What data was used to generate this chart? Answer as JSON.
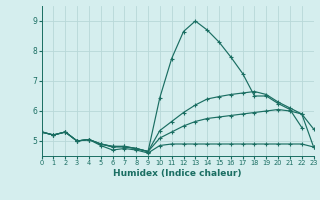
{
  "background_color": "#d5eeee",
  "grid_color": "#b8d8d8",
  "line_color": "#1a6e62",
  "x_label": "Humidex (Indice chaleur)",
  "xlim": [
    0,
    23
  ],
  "ylim": [
    4.5,
    9.5
  ],
  "yticks": [
    5,
    6,
    7,
    8,
    9
  ],
  "xticks": [
    0,
    1,
    2,
    3,
    4,
    5,
    6,
    7,
    8,
    9,
    10,
    11,
    12,
    13,
    14,
    15,
    16,
    17,
    18,
    19,
    20,
    21,
    22,
    23
  ],
  "series": [
    {
      "x": [
        0,
        1,
        2,
        3,
        4,
        5,
        6,
        7,
        8,
        9,
        10,
        11,
        12,
        13,
        14,
        15,
        16,
        17,
        18,
        19,
        20,
        21,
        22,
        23
      ],
      "y": [
        5.3,
        5.2,
        5.3,
        5.0,
        5.05,
        4.85,
        4.7,
        4.75,
        4.7,
        4.6,
        4.85,
        4.9,
        4.9,
        4.9,
        4.9,
        4.9,
        4.9,
        4.9,
        4.9,
        4.9,
        4.9,
        4.9,
        4.9,
        4.8
      ]
    },
    {
      "x": [
        0,
        1,
        2,
        3,
        4,
        5,
        6,
        7,
        8,
        9,
        10,
        11,
        12,
        13,
        14,
        15,
        16,
        17,
        18,
        19,
        20,
        21,
        22,
        23
      ],
      "y": [
        5.3,
        5.2,
        5.3,
        5.0,
        5.05,
        4.9,
        4.8,
        4.8,
        4.75,
        4.65,
        5.1,
        5.3,
        5.5,
        5.65,
        5.75,
        5.8,
        5.85,
        5.9,
        5.95,
        6.0,
        6.05,
        6.0,
        5.9,
        4.8
      ]
    },
    {
      "x": [
        0,
        1,
        2,
        3,
        4,
        5,
        6,
        7,
        8,
        9,
        10,
        11,
        12,
        13,
        14,
        15,
        16,
        17,
        18,
        19,
        20,
        21,
        22,
        23
      ],
      "y": [
        5.3,
        5.2,
        5.3,
        5.0,
        5.05,
        4.9,
        4.82,
        4.82,
        4.75,
        4.65,
        5.35,
        5.65,
        5.95,
        6.2,
        6.4,
        6.48,
        6.55,
        6.6,
        6.65,
        6.55,
        6.3,
        6.1,
        5.9,
        5.4
      ]
    },
    {
      "x": [
        0,
        1,
        2,
        3,
        4,
        5,
        6,
        7,
        8,
        9,
        10,
        11,
        12,
        13,
        14,
        15,
        16,
        17,
        18,
        19,
        20,
        21,
        22
      ],
      "y": [
        5.3,
        5.2,
        5.3,
        5.0,
        5.05,
        4.9,
        4.82,
        4.82,
        4.75,
        4.65,
        6.45,
        7.75,
        8.65,
        9.0,
        8.7,
        8.3,
        7.8,
        7.25,
        6.5,
        6.5,
        6.25,
        6.05,
        5.45
      ]
    }
  ]
}
